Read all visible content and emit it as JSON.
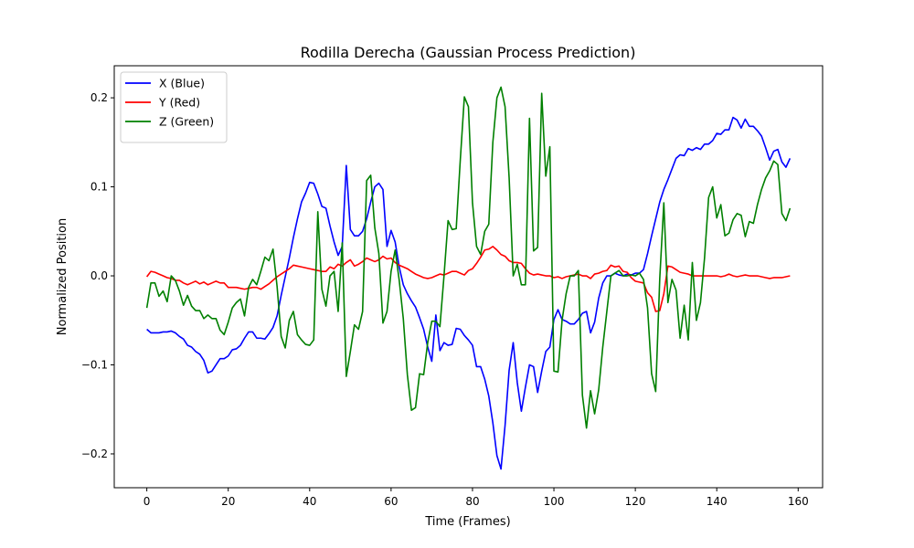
{
  "chart_data": {
    "type": "line",
    "title": "Rodilla Derecha (Gaussian Process Prediction)",
    "xlabel": "Time (Frames)",
    "ylabel": "Normalized Position",
    "xlim": [
      -8,
      166
    ],
    "ylim": [
      -0.238,
      0.236
    ],
    "xticks": [
      0,
      20,
      40,
      60,
      80,
      100,
      120,
      140,
      160
    ],
    "yticks": [
      -0.2,
      -0.1,
      0.0,
      0.1,
      0.2
    ],
    "ytick_labels": [
      "−0.2",
      "−0.1",
      "0.0",
      "0.1",
      "0.2"
    ],
    "grid": false,
    "legend_position": "top-left",
    "x": [
      0,
      1,
      2,
      3,
      4,
      5,
      6,
      7,
      8,
      9,
      10,
      11,
      12,
      13,
      14,
      15,
      16,
      17,
      18,
      19,
      20,
      21,
      22,
      23,
      24,
      25,
      26,
      27,
      28,
      29,
      30,
      31,
      32,
      33,
      34,
      35,
      36,
      37,
      38,
      39,
      40,
      41,
      42,
      43,
      44,
      45,
      46,
      47,
      48,
      49,
      50,
      51,
      52,
      53,
      54,
      55,
      56,
      57,
      58,
      59,
      60,
      61,
      62,
      63,
      64,
      65,
      66,
      67,
      68,
      69,
      70,
      71,
      72,
      73,
      74,
      75,
      76,
      77,
      78,
      79,
      80,
      81,
      82,
      83,
      84,
      85,
      86,
      87,
      88,
      89,
      90,
      91,
      92,
      93,
      94,
      95,
      96,
      97,
      98,
      99,
      100,
      101,
      102,
      103,
      104,
      105,
      106,
      107,
      108,
      109,
      110,
      111,
      112,
      113,
      114,
      115,
      116,
      117,
      118,
      119,
      120,
      121,
      122,
      123,
      124,
      125,
      126,
      127,
      128,
      129,
      130,
      131,
      132,
      133,
      134,
      135,
      136,
      137,
      138,
      139,
      140,
      141,
      142,
      143,
      144,
      145,
      146,
      147,
      148,
      149,
      150,
      151,
      152,
      153,
      154,
      155,
      156,
      157,
      158
    ],
    "series": [
      {
        "name": "X (Blue)",
        "color": "#0000ff",
        "values": [
          -0.06,
          -0.064,
          -0.064,
          -0.064,
          -0.063,
          -0.063,
          -0.062,
          -0.064,
          -0.068,
          -0.071,
          -0.078,
          -0.08,
          -0.085,
          -0.088,
          -0.095,
          -0.109,
          -0.107,
          -0.1,
          -0.093,
          -0.093,
          -0.09,
          -0.083,
          -0.082,
          -0.078,
          -0.07,
          -0.063,
          -0.063,
          -0.07,
          -0.07,
          -0.071,
          -0.065,
          -0.058,
          -0.045,
          -0.022,
          -0.001,
          0.02,
          0.043,
          0.064,
          0.083,
          0.093,
          0.105,
          0.104,
          0.092,
          0.078,
          0.076,
          0.056,
          0.038,
          0.023,
          0.033,
          0.124,
          0.052,
          0.045,
          0.045,
          0.05,
          0.064,
          0.083,
          0.1,
          0.104,
          0.097,
          0.033,
          0.051,
          0.038,
          0.01,
          -0.01,
          -0.02,
          -0.028,
          -0.035,
          -0.047,
          -0.06,
          -0.08,
          -0.096,
          -0.044,
          -0.084,
          -0.075,
          -0.078,
          -0.077,
          -0.059,
          -0.06,
          -0.067,
          -0.072,
          -0.078,
          -0.102,
          -0.102,
          -0.116,
          -0.135,
          -0.165,
          -0.202,
          -0.217,
          -0.168,
          -0.106,
          -0.075,
          -0.12,
          -0.152,
          -0.125,
          -0.1,
          -0.102,
          -0.131,
          -0.107,
          -0.085,
          -0.08,
          -0.049,
          -0.038,
          -0.049,
          -0.051,
          -0.054,
          -0.054,
          -0.049,
          -0.042,
          -0.04,
          -0.064,
          -0.052,
          -0.025,
          -0.008,
          0.0,
          0.0,
          0.003,
          0.001,
          0.0,
          0.002,
          0.001,
          0.003,
          0.003,
          0.007,
          0.025,
          0.045,
          0.064,
          0.083,
          0.097,
          0.108,
          0.12,
          0.132,
          0.136,
          0.135,
          0.143,
          0.141,
          0.144,
          0.142,
          0.148,
          0.148,
          0.152,
          0.16,
          0.159,
          0.164,
          0.164,
          0.178,
          0.175,
          0.166,
          0.176,
          0.168,
          0.168,
          0.163,
          0.157,
          0.144,
          0.13,
          0.14,
          0.142,
          0.128,
          0.122,
          0.132
        ]
      },
      {
        "name": "Y (Red)",
        "color": "#ff0000",
        "values": [
          -0.001,
          0.005,
          0.004,
          0.002,
          0.0,
          -0.002,
          -0.003,
          -0.005,
          -0.005,
          -0.008,
          -0.01,
          -0.008,
          -0.006,
          -0.009,
          -0.007,
          -0.01,
          -0.008,
          -0.006,
          -0.008,
          -0.008,
          -0.013,
          -0.013,
          -0.013,
          -0.014,
          -0.015,
          -0.014,
          -0.013,
          -0.013,
          -0.015,
          -0.012,
          -0.009,
          -0.005,
          -0.001,
          0.002,
          0.005,
          0.008,
          0.012,
          0.011,
          0.01,
          0.009,
          0.008,
          0.007,
          0.006,
          0.005,
          0.005,
          0.01,
          0.008,
          0.013,
          0.011,
          0.015,
          0.018,
          0.011,
          0.013,
          0.016,
          0.02,
          0.018,
          0.016,
          0.018,
          0.022,
          0.019,
          0.02,
          0.015,
          0.012,
          0.01,
          0.008,
          0.005,
          0.002,
          0.0,
          -0.002,
          -0.003,
          -0.002,
          0.0,
          0.002,
          0.001,
          0.003,
          0.005,
          0.005,
          0.003,
          0.001,
          0.006,
          0.008,
          0.014,
          0.021,
          0.029,
          0.03,
          0.033,
          0.029,
          0.024,
          0.022,
          0.017,
          0.015,
          0.015,
          0.014,
          0.008,
          0.003,
          0.001,
          0.002,
          0.001,
          0.0,
          0.0,
          -0.002,
          -0.001,
          -0.003,
          -0.001,
          0.0,
          0.001,
          0.002,
          0.0,
          0.0,
          -0.003,
          0.002,
          0.003,
          0.005,
          0.006,
          0.012,
          0.01,
          0.011,
          0.005,
          0.004,
          -0.002,
          -0.006,
          -0.007,
          -0.008,
          -0.019,
          -0.024,
          -0.04,
          -0.039,
          -0.02,
          0.011,
          0.01,
          0.007,
          0.004,
          0.003,
          0.002,
          0.0,
          0.0,
          0.0,
          0.0,
          0.0,
          0.0,
          0.0,
          -0.001,
          0.0,
          0.002,
          0.0,
          -0.001,
          0.0,
          0.001,
          0.0,
          0.0,
          0.0,
          -0.001,
          -0.002,
          -0.003,
          -0.002,
          -0.002,
          -0.002,
          -0.001,
          0.0
        ]
      },
      {
        "name": "Z (Green)",
        "color": "#008000",
        "values": [
          -0.036,
          -0.008,
          -0.008,
          -0.023,
          -0.017,
          -0.029,
          0.0,
          -0.005,
          -0.017,
          -0.033,
          -0.022,
          -0.034,
          -0.039,
          -0.039,
          -0.048,
          -0.044,
          -0.048,
          -0.048,
          -0.061,
          -0.066,
          -0.052,
          -0.036,
          -0.03,
          -0.026,
          -0.045,
          -0.013,
          -0.004,
          -0.01,
          0.005,
          0.021,
          0.017,
          0.03,
          -0.012,
          -0.068,
          -0.081,
          -0.05,
          -0.04,
          -0.066,
          -0.072,
          -0.077,
          -0.078,
          -0.072,
          0.072,
          -0.015,
          -0.034,
          0.0,
          0.005,
          -0.04,
          0.037,
          -0.113,
          -0.085,
          -0.055,
          -0.06,
          -0.04,
          0.107,
          0.113,
          0.054,
          0.025,
          -0.053,
          -0.04,
          0.005,
          0.029,
          -0.005,
          -0.048,
          -0.111,
          -0.151,
          -0.148,
          -0.11,
          -0.111,
          -0.075,
          -0.051,
          -0.051,
          -0.057,
          0.0,
          0.062,
          0.052,
          0.053,
          0.13,
          0.201,
          0.19,
          0.082,
          0.033,
          0.024,
          0.05,
          0.058,
          0.15,
          0.2,
          0.212,
          0.19,
          0.11,
          0.0,
          0.013,
          -0.01,
          -0.01,
          0.177,
          0.028,
          0.032,
          0.205,
          0.112,
          0.145,
          -0.107,
          -0.108,
          -0.05,
          -0.02,
          0.0,
          0.0,
          0.006,
          -0.134,
          -0.171,
          -0.129,
          -0.155,
          -0.128,
          -0.08,
          -0.04,
          0.0,
          0.003,
          0.006,
          0.0,
          0.0,
          0.001,
          0.0,
          0.003,
          -0.004,
          -0.036,
          -0.11,
          -0.13,
          -0.003,
          0.082,
          -0.03,
          -0.004,
          -0.016,
          -0.07,
          -0.033,
          -0.072,
          0.015,
          -0.05,
          -0.03,
          0.02,
          0.088,
          0.1,
          0.065,
          0.08,
          0.045,
          0.048,
          0.063,
          0.07,
          0.068,
          0.044,
          0.061,
          0.059,
          0.08,
          0.097,
          0.11,
          0.118,
          0.129,
          0.125,
          0.07,
          0.062,
          0.076
        ]
      }
    ]
  }
}
